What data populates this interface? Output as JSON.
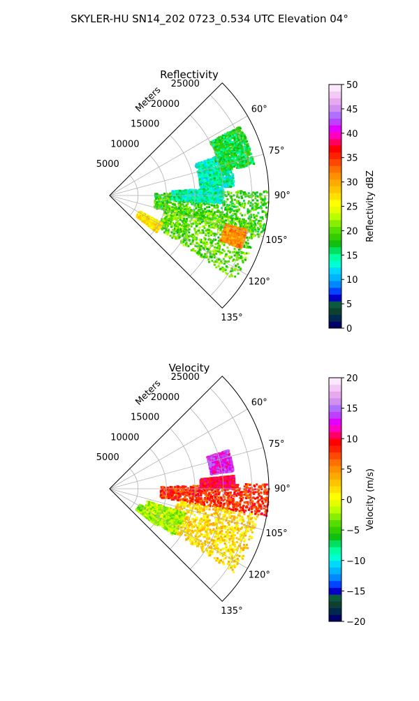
{
  "figure_title": "SKYLER-HU  SN14_202  0723_0.534 UTC Elevation 04°",
  "chart_data": [
    {
      "type": "heatmap",
      "subtype": "polar-sector-radar",
      "title": "Reflectivity",
      "radial_axis_label": "Meters",
      "radial_ticks": [
        5000,
        10000,
        15000,
        20000,
        25000
      ],
      "radial_range": [
        0,
        28000
      ],
      "angle_range_deg": [
        45,
        135
      ],
      "angle_ticks_deg": [
        60,
        75,
        90,
        105,
        120,
        135
      ],
      "angle_tick_labels": [
        "60°",
        "75°",
        "90°",
        "105°",
        "120°",
        "135°"
      ],
      "grid": true,
      "colorbar": {
        "label": "Reflectivity dBZ",
        "range": [
          0,
          50
        ],
        "ticks": [
          0,
          5,
          10,
          15,
          20,
          25,
          30,
          35,
          40,
          45,
          50
        ],
        "tick_labels": [
          "0",
          "5",
          "10",
          "15",
          "20",
          "25",
          "30",
          "35",
          "40",
          "45",
          "50"
        ],
        "colors": [
          "#000066",
          "#00284f",
          "#0d3f33",
          "#0a5a40",
          "#0000c8",
          "#0044ff",
          "#0088ff",
          "#00b4ff",
          "#00d8ff",
          "#00ffd0",
          "#00ffa0",
          "#00e060",
          "#10c010",
          "#33cc00",
          "#55dd00",
          "#88ee00",
          "#bbff00",
          "#e6ff00",
          "#ffff00",
          "#ffe000",
          "#ffc400",
          "#ffaa00",
          "#ff9000",
          "#ff7000",
          "#ff4800",
          "#ff2000",
          "#ff0000",
          "#ff0060",
          "#ff00c0",
          "#e000ff",
          "#c040ff",
          "#b070ff",
          "#d090f0",
          "#e8a8f0",
          "#f4c8f4",
          "#fce8fc"
        ]
      },
      "echo_regions": [
        {
          "angle_deg": [
            88,
            106
          ],
          "range_m": [
            8000,
            28000
          ],
          "value": 19
        },
        {
          "angle_deg": [
            100,
            124
          ],
          "range_m": [
            10000,
            26500
          ],
          "value": 20
        },
        {
          "angle_deg": [
            104,
            112
          ],
          "range_m": [
            21000,
            25000
          ],
          "value": 31
        },
        {
          "angle_deg": [
            118,
            128
          ],
          "range_m": [
            6000,
            10500
          ],
          "value": 27
        },
        {
          "angle_deg": [
            70,
            86
          ],
          "range_m": [
            16000,
            22000
          ],
          "value": 14
        },
        {
          "angle_deg": [
            86,
            94
          ],
          "range_m": [
            11000,
            20000
          ],
          "value": 14
        },
        {
          "angle_deg": [
            62,
            78
          ],
          "range_m": [
            20000,
            26000
          ],
          "value": 17
        }
      ]
    },
    {
      "type": "heatmap",
      "subtype": "polar-sector-radar",
      "title": "Velocity",
      "radial_axis_label": "Meters",
      "radial_ticks": [
        5000,
        10000,
        15000,
        20000,
        25000
      ],
      "radial_range": [
        0,
        28000
      ],
      "angle_range_deg": [
        45,
        135
      ],
      "angle_ticks_deg": [
        60,
        75,
        90,
        105,
        120,
        135
      ],
      "angle_tick_labels": [
        "60°",
        "75°",
        "90°",
        "105°",
        "120°",
        "135°"
      ],
      "grid": true,
      "colorbar": {
        "label": "Velocity (m/s)",
        "range": [
          -20,
          20
        ],
        "ticks": [
          -20,
          -15,
          -10,
          -5,
          0,
          5,
          10,
          15,
          20
        ],
        "tick_labels": [
          "−20",
          "−15",
          "−10",
          "−5",
          "0",
          "5",
          "10",
          "15",
          "20"
        ],
        "colors": [
          "#000066",
          "#00284f",
          "#0d3f33",
          "#0a5a40",
          "#0000c8",
          "#0044ff",
          "#0088ff",
          "#00b4ff",
          "#00d8ff",
          "#00ffd0",
          "#00ffa0",
          "#00e060",
          "#10c010",
          "#33cc00",
          "#55dd00",
          "#88ee00",
          "#bbff00",
          "#e6ff00",
          "#ffff00",
          "#ffe000",
          "#ffc400",
          "#ffaa00",
          "#ff9000",
          "#ff7000",
          "#ff4800",
          "#ff2000",
          "#ff0000",
          "#ff0060",
          "#ff00c0",
          "#e000ff",
          "#c040ff",
          "#b070ff",
          "#d090f0",
          "#e8a8f0",
          "#f4c8f4",
          "#fce8fc"
        ]
      },
      "echo_regions": [
        {
          "angle_deg": [
            88,
            100
          ],
          "range_m": [
            9000,
            28000
          ],
          "value": 8
        },
        {
          "angle_deg": [
            100,
            124
          ],
          "range_m": [
            12000,
            26500
          ],
          "value": 2
        },
        {
          "angle_deg": [
            118,
            128
          ],
          "range_m": [
            6000,
            10500
          ],
          "value": -3
        },
        {
          "angle_deg": [
            72,
            82
          ],
          "range_m": [
            18000,
            22000
          ],
          "value": 13
        },
        {
          "angle_deg": [
            84,
            90
          ],
          "range_m": [
            16000,
            22000
          ],
          "value": 10
        },
        {
          "angle_deg": [
            108,
            126
          ],
          "range_m": [
            7000,
            14000
          ],
          "value": -2
        }
      ]
    }
  ]
}
